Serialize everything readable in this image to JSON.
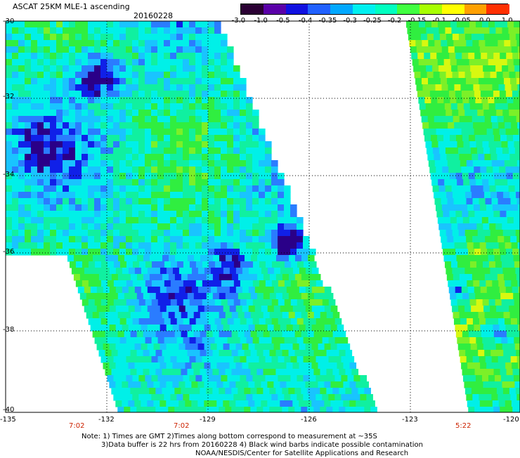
{
  "header": {
    "title": "ASCAT 25KM MLE-1 ascending",
    "date": "20160228"
  },
  "colorbar": {
    "labels": [
      "-3.0",
      "-1.0",
      "-0.5",
      "-0.4",
      "-0.35",
      "-0.3",
      "-0.25",
      "-0.2",
      "-0.15",
      "-0.1",
      "-0.05",
      "0.0",
      "1.0"
    ],
    "colors": [
      "#2a0033",
      "#5a00a8",
      "#1010e0",
      "#2060ff",
      "#00a8ff",
      "#00f0f0",
      "#00ffc0",
      "#40ff40",
      "#a8ff00",
      "#ffff00",
      "#ffa000",
      "#ff3000"
    ]
  },
  "axes": {
    "lat_labels": [
      "-30",
      "-32",
      "-34",
      "-36",
      "-38",
      "-40"
    ],
    "lon_labels": [
      "-135",
      "-132",
      "-129",
      "-126",
      "-123",
      "-120"
    ]
  },
  "times": [
    "7:02",
    "7:02",
    "5:22"
  ],
  "notes": {
    "line1": "Note: 1) Times are GMT 2)Times along bottom correspond to measurement at ~35S",
    "line2": "3)Data buffer is 22 hrs from 20160228 4) Black wind barbs indicate possible contamination",
    "line3": "NOAA/NESDIS/Center for Satellite Applications and Research"
  }
}
